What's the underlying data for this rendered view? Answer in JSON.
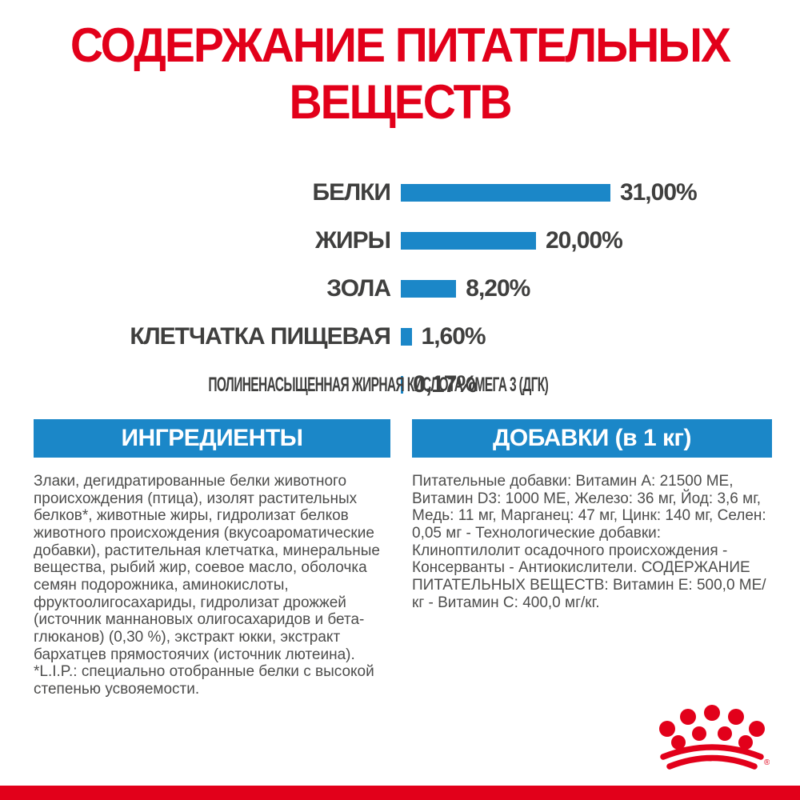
{
  "title": "СОДЕРЖАНИЕ ПИТАТЕЛЬНЫХ ВЕЩЕСТВ",
  "chart_data": {
    "type": "bar",
    "orientation": "horizontal",
    "title": "СОДЕРЖАНИЕ ПИТАТЕЛЬНЫХ ВЕЩЕСТВ",
    "categories": [
      "БЕЛКИ",
      "ЖИРЫ",
      "ЗОЛА",
      "КЛЕТЧАТКА ПИЩЕВАЯ",
      "ПОЛИНЕНАСЫЩЕННАЯ ЖИРНАЯ КИСЛОТА ОМЕГА 3 (ДГК)"
    ],
    "values": [
      31.0,
      20.0,
      8.2,
      1.6,
      0.17
    ],
    "value_labels": [
      "31,00%",
      "20,00%",
      "8,20%",
      "1,60%",
      "0,17%"
    ],
    "unit": "%",
    "xlim": [
      0,
      33
    ],
    "grid": false,
    "legend": false,
    "bar_color": "#1b87c8"
  },
  "sections": {
    "ingredients": {
      "header": "ИНГРЕДИЕНТЫ",
      "body": "Злаки, дегидратированные белки животного происхождения (птица), изолят растительных белков*, животные жиры, гидролизат белков животного происхождения (вкусоароматические добавки), растительная клетчатка, минеральные вещества, рыбий жир, соевое масло, оболочка семян подорожника, аминокислоты, фруктоолигосахариды, гидролизат дрожжей (источник маннановых олигосахаридов и бета-глюканов) (0,30 %), экстракт юкки, экстракт бархатцев прямостоячих (источник лютеина). *L.I.P.: специально отобранные белки с высокой степенью усвояемости."
    },
    "additives": {
      "header": "ДОБАВКИ (в 1 кг)",
      "body": "Питательные добавки: Витамин A: 21500 ME, Витамин D3: 1000 ME, Железо: 36 мг, Йод: 3,6 мг, Медь: 11 мг, Марганец: 47 мг, Цинк: 140 мг, Селен: 0,05 мг - Технологические добавки: Клиноптилолит осадочного происхождения - Консерванты - Антиокислители. СОДЕРЖАНИЕ ПИТАТЕЛЬНЫХ ВЕЩЕСТВ: Витамин E: 500,0 МЕ/кг - Витамин C: 400,0 мг/кг."
    }
  },
  "logo": {
    "name": "royal-canin-crown",
    "registered_mark": "®"
  },
  "colors": {
    "brand_red": "#e2001a",
    "bar_blue": "#1b87c8",
    "label_gray": "#3f3f3e",
    "body_gray": "#4d4d4c",
    "background": "#ffffff"
  }
}
